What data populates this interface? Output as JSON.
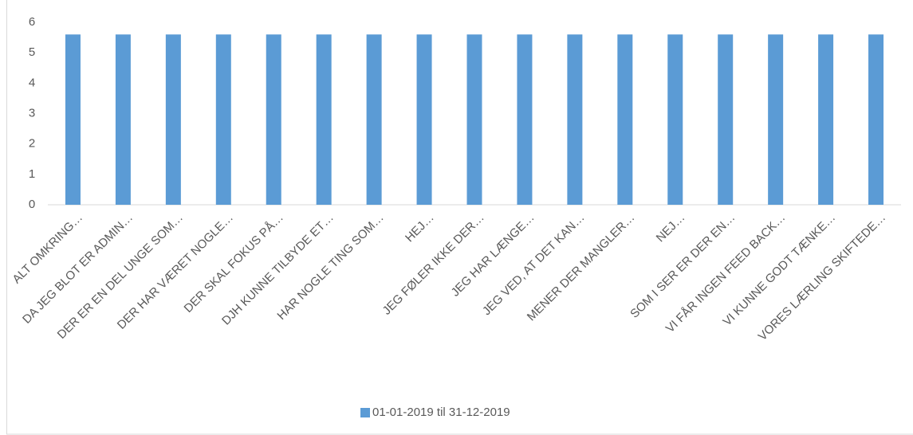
{
  "chart_data": {
    "type": "bar",
    "categories": [
      "ALT OMKRING…",
      "DA JEG BLOT ER ADMIN…",
      "DER ER EN DEL UNGE SOM…",
      "DER HAR VÆRET NOGLE…",
      "DER SKAL FOKUS PÅ…",
      "DJH KUNNE TILBYDE ET…",
      "HAR NOGLE TING SOM…",
      "HEJ…",
      "JEG FØLER IKKE DER…",
      "JEG HAR LÆNGE…",
      "JEG VED, AT DET KAN…",
      "MENER DER MANGLER…",
      "NEJ…",
      "SOM I SER ER DER EN…",
      "VI FÅR INGEN FEED BACK…",
      "VI KUNNE GODT TÆNKE…",
      "VORES LÆRLING SKIFTEDE…"
    ],
    "series": [
      {
        "name": "01-01-2019 til 31-12-2019",
        "color": "#5b9bd5",
        "values": [
          5.6,
          5.6,
          5.6,
          5.6,
          5.6,
          5.6,
          5.6,
          5.6,
          5.6,
          5.6,
          5.6,
          5.6,
          5.6,
          5.6,
          5.6,
          5.6,
          5.6
        ]
      }
    ],
    "ylim": [
      0,
      6
    ],
    "yticks": [
      0,
      1,
      2,
      3,
      4,
      5,
      6
    ],
    "grid": false,
    "legend": "bottom"
  }
}
